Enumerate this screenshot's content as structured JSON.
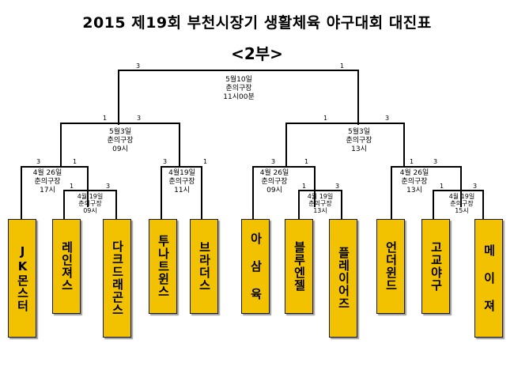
{
  "title": "2015 제19회 부천시장기 생활체육 야구대회 대진표",
  "division": "<2부>",
  "teams": [
    {
      "name": "JK몬스터"
    },
    {
      "name": "레인져스"
    },
    {
      "name": "다크드래곤스"
    },
    {
      "name": "투나트윈스"
    },
    {
      "name": "브라더스"
    },
    {
      "name": "아 삼 육"
    },
    {
      "name": "블루엔젤"
    },
    {
      "name": "플레이어즈"
    },
    {
      "name": "언더윈드"
    },
    {
      "name": "고교야구"
    },
    {
      "name": "메 이 져"
    }
  ],
  "matches": {
    "final": {
      "date": "5월10일",
      "venue": "춘의구장",
      "time": "11시00분",
      "left_score": "3",
      "right_score": "1"
    },
    "semi_left": {
      "date": "5월3일",
      "venue": "춘의구장",
      "time": "09시",
      "left_score": "1",
      "right_score": "3"
    },
    "semi_right": {
      "date": "5월3일",
      "venue": "춘의구장",
      "time": "13시",
      "left_score": "1",
      "right_score": "3"
    },
    "qf1": {
      "date": "4월 26일",
      "venue": "춘의구장",
      "time": "17시",
      "left_score": "3",
      "right_score": "1"
    },
    "qf2": {
      "date": "4월19일",
      "venue": "춘의구장",
      "time": "11시",
      "left_score": "3",
      "right_score": "1"
    },
    "qf3": {
      "date": "4월 26일",
      "venue": "춘의구장",
      "time": "09시",
      "left_score": "3",
      "right_score": "1"
    },
    "qf4": {
      "date": "4월 26일",
      "venue": "춘의구장",
      "time": "13시",
      "left_score": "1",
      "right_score": "3"
    },
    "r1a": {
      "date": "4월 19일",
      "venue": "춘의구장",
      "time": "09시",
      "left_score": "1",
      "right_score": "3"
    },
    "r1b": {
      "date": "4월 19일",
      "venue": "춘의구장",
      "time": "13시",
      "left_score": "1",
      "right_score": "3"
    },
    "r1c": {
      "date": "4월 19일",
      "venue": "춘의구장",
      "time": "15시",
      "left_score": "1",
      "right_score": "3"
    }
  }
}
